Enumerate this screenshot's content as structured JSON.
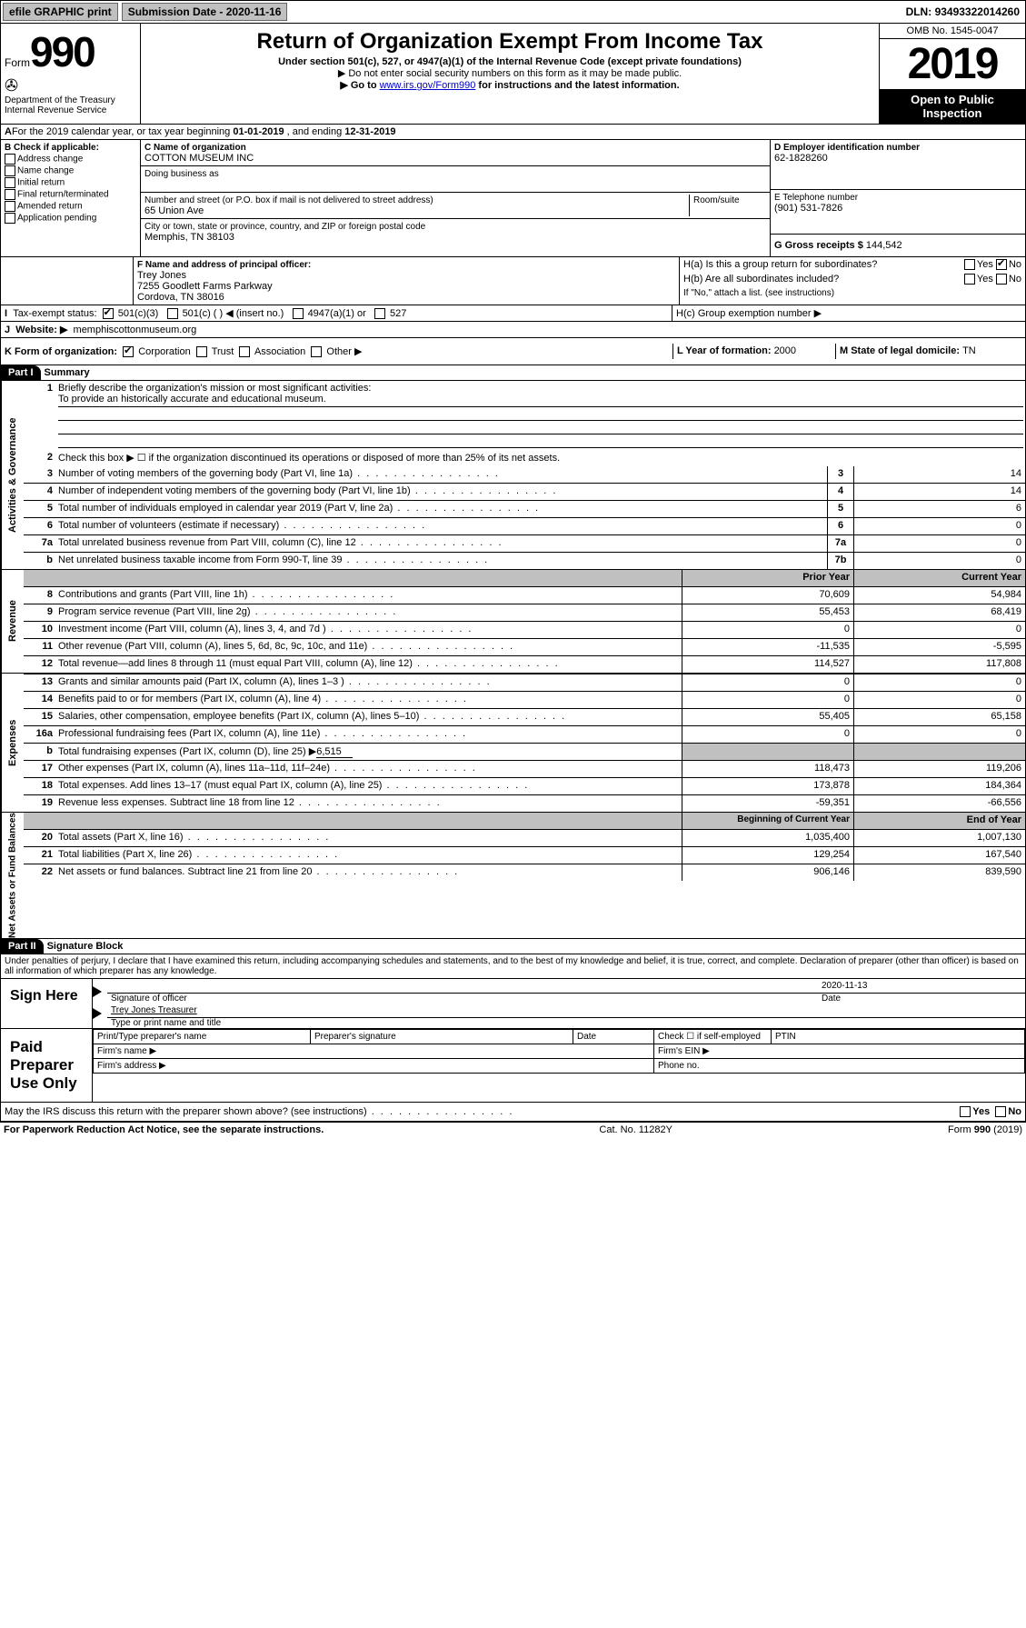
{
  "colors": {
    "black": "#000000",
    "grey": "#c0c0c0",
    "link": "#0000cc",
    "white": "#ffffff"
  },
  "topbar": {
    "efile": "efile GRAPHIC print",
    "subdate_label": "Submission Date - ",
    "subdate": "2020-11-16",
    "dln_label": "DLN: ",
    "dln": "93493322014260"
  },
  "header": {
    "form": "Form",
    "num": "990",
    "dept": "Department of the Treasury",
    "irs": "Internal Revenue Service",
    "title": "Return of Organization Exempt From Income Tax",
    "sub": "Under section 501(c), 527, or 4947(a)(1) of the Internal Revenue Code (except private foundations)",
    "note1": "▶ Do not enter social security numbers on this form as it may be made public.",
    "note2a": "▶ Go to ",
    "note2_link": "www.irs.gov/Form990",
    "note2b": " for instructions and the latest information.",
    "omb": "OMB No. 1545-0047",
    "year": "2019",
    "open": "Open to Public Inspection"
  },
  "A": {
    "text": "For the 2019 calendar year, or tax year beginning ",
    "begin": "01-01-2019",
    "mid": " , and ending ",
    "end": "12-31-2019"
  },
  "B": {
    "label": "B Check if applicable:",
    "items": [
      "Address change",
      "Name change",
      "Initial return",
      "Final return/terminated",
      "Amended return",
      "Application pending"
    ]
  },
  "C": {
    "name_label": "C Name of organization",
    "name": "COTTON MUSEUM INC",
    "dba_label": "Doing business as",
    "dba": "",
    "addr_label": "Number and street (or P.O. box if mail is not delivered to street address)",
    "room_label": "Room/suite",
    "addr": "65 Union Ave",
    "city_label": "City or town, state or province, country, and ZIP or foreign postal code",
    "city": "Memphis, TN  38103"
  },
  "D": {
    "label": "D Employer identification number",
    "val": "62-1828260"
  },
  "E": {
    "label": "E Telephone number",
    "val": "(901) 531-7826"
  },
  "G": {
    "label": "G Gross receipts $ ",
    "val": "144,542"
  },
  "F": {
    "label": "F  Name and address of principal officer:",
    "name": "Trey Jones",
    "addr1": "7255 Goodlett Farms Parkway",
    "addr2": "Cordova, TN  38016"
  },
  "H": {
    "a": "H(a)  Is this a group return for subordinates?",
    "a_yes": "Yes",
    "a_no": "No",
    "a_checked": "No",
    "b": "H(b)  Are all subordinates included?",
    "b_yes": "Yes",
    "b_no": "No",
    "b_note": "If \"No,\" attach a list. (see instructions)",
    "c": "H(c)  Group exemption number ▶"
  },
  "I": {
    "label": "Tax-exempt status:",
    "opts": [
      "501(c)(3)",
      "501(c) (  ) ◀ (insert no.)",
      "4947(a)(1) or",
      "527"
    ],
    "checked": 0
  },
  "J": {
    "label": "Website: ▶",
    "val": "memphiscottonmuseum.org"
  },
  "K": {
    "label": "K Form of organization:",
    "opts": [
      "Corporation",
      "Trust",
      "Association",
      "Other ▶"
    ],
    "checked": 0
  },
  "L": {
    "label": "L Year of formation: ",
    "val": "2000"
  },
  "M": {
    "label": "M State of legal domicile: ",
    "val": "TN"
  },
  "part1": {
    "label": "Part I",
    "title": "Summary"
  },
  "act": {
    "vt": "Activities & Governance",
    "l1": "Briefly describe the organization's mission or most significant activities:",
    "l1v": "To provide an historically accurate and educational museum.",
    "l2": "Check this box ▶ ☐  if the organization discontinued its operations or disposed of more than 25% of its net assets.",
    "l3": "Number of voting members of the governing body (Part VI, line 1a)",
    "l4": "Number of independent voting members of the governing body (Part VI, line 1b)",
    "l5": "Total number of individuals employed in calendar year 2019 (Part V, line 2a)",
    "l6": "Total number of volunteers (estimate if necessary)",
    "l7a": "Total unrelated business revenue from Part VIII, column (C), line 12",
    "l7b": "Net unrelated business taxable income from Form 990-T, line 39",
    "v": {
      "3": "14",
      "4": "14",
      "5": "6",
      "6": "0",
      "7a": "0",
      "7b": "0"
    }
  },
  "rev": {
    "vt": "Revenue",
    "prior": "Prior Year",
    "current": "Current Year",
    "rows": [
      {
        "n": "8",
        "t": "Contributions and grants (Part VIII, line 1h)",
        "p": "70,609",
        "c": "54,984"
      },
      {
        "n": "9",
        "t": "Program service revenue (Part VIII, line 2g)",
        "p": "55,453",
        "c": "68,419"
      },
      {
        "n": "10",
        "t": "Investment income (Part VIII, column (A), lines 3, 4, and 7d )",
        "p": "0",
        "c": "0"
      },
      {
        "n": "11",
        "t": "Other revenue (Part VIII, column (A), lines 5, 6d, 8c, 9c, 10c, and 11e)",
        "p": "-11,535",
        "c": "-5,595"
      },
      {
        "n": "12",
        "t": "Total revenue—add lines 8 through 11 (must equal Part VIII, column (A), line 12)",
        "p": "114,527",
        "c": "117,808"
      }
    ]
  },
  "exp": {
    "vt": "Expenses",
    "rows": [
      {
        "n": "13",
        "t": "Grants and similar amounts paid (Part IX, column (A), lines 1–3 )",
        "p": "0",
        "c": "0"
      },
      {
        "n": "14",
        "t": "Benefits paid to or for members (Part IX, column (A), line 4)",
        "p": "0",
        "c": "0"
      },
      {
        "n": "15",
        "t": "Salaries, other compensation, employee benefits (Part IX, column (A), lines 5–10)",
        "p": "55,405",
        "c": "65,158"
      },
      {
        "n": "16a",
        "t": "Professional fundraising fees (Part IX, column (A), line 11e)",
        "p": "0",
        "c": "0"
      }
    ],
    "b": "Total fundraising expenses (Part IX, column (D), line 25) ▶",
    "bval": "6,515",
    "rows2": [
      {
        "n": "17",
        "t": "Other expenses (Part IX, column (A), lines 11a–11d, 11f–24e)",
        "p": "118,473",
        "c": "119,206"
      },
      {
        "n": "18",
        "t": "Total expenses. Add lines 13–17 (must equal Part IX, column (A), line 25)",
        "p": "173,878",
        "c": "184,364"
      },
      {
        "n": "19",
        "t": "Revenue less expenses. Subtract line 18 from line 12",
        "p": "-59,351",
        "c": "-66,556"
      }
    ]
  },
  "net": {
    "vt": "Net Assets or Fund Balances",
    "begin": "Beginning of Current Year",
    "end": "End of Year",
    "rows": [
      {
        "n": "20",
        "t": "Total assets (Part X, line 16)",
        "p": "1,035,400",
        "c": "1,007,130"
      },
      {
        "n": "21",
        "t": "Total liabilities (Part X, line 26)",
        "p": "129,254",
        "c": "167,540"
      },
      {
        "n": "22",
        "t": "Net assets or fund balances. Subtract line 21 from line 20",
        "p": "906,146",
        "c": "839,590"
      }
    ]
  },
  "part2": {
    "label": "Part II",
    "title": "Signature Block",
    "perjury": "Under penalties of perjury, I declare that I have examined this return, including accompanying schedules and statements, and to the best of my knowledge and belief, it is true, correct, and complete. Declaration of preparer (other than officer) is based on all information of which preparer has any knowledge."
  },
  "sign": {
    "label": "Sign Here",
    "date": "2020-11-13",
    "sigof": "Signature of officer",
    "datel": "Date",
    "name": "Trey Jones Treasurer",
    "namel": "Type or print name and title"
  },
  "paid": {
    "label": "Paid Preparer Use Only",
    "h": [
      "Print/Type preparer's name",
      "Preparer's signature",
      "Date",
      "Check ☐ if self-employed",
      "PTIN"
    ],
    "firm_name": "Firm's name  ▶",
    "firm_ein": "Firm's EIN ▶",
    "firm_addr": "Firm's address ▶",
    "phone": "Phone no."
  },
  "discuss": {
    "q": "May the IRS discuss this return with the preparer shown above? (see instructions)",
    "yes": "Yes",
    "no": "No"
  },
  "footer": {
    "pra": "For Paperwork Reduction Act Notice, see the separate instructions.",
    "cat": "Cat. No. 11282Y",
    "form": "Form 990 (2019)"
  }
}
